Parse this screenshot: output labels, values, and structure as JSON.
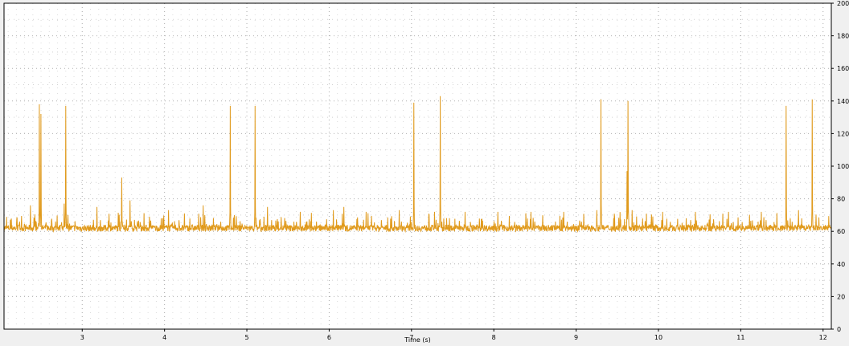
{
  "chart_data": {
    "type": "line",
    "title": "",
    "xlabel": "Time (s)",
    "ylabel": "",
    "x_range": [
      2.05,
      12.1
    ],
    "ylim": [
      0,
      200
    ],
    "x_ticks": [
      3,
      4,
      5,
      6,
      7,
      8,
      9,
      10,
      11,
      12
    ],
    "x_tick_labels": [
      "3",
      "4",
      "5",
      "6",
      "7",
      "8",
      "9",
      "10",
      "11",
      "12"
    ],
    "y_ticks": [
      0,
      20,
      40,
      60,
      80,
      100,
      120,
      140,
      160,
      180,
      200
    ],
    "y_tick_labels": [
      "0",
      "20",
      "40",
      "60",
      "80",
      "100",
      "120",
      "140",
      "160",
      "180",
      "200"
    ],
    "y_axis_side": "right",
    "grid": true,
    "baseline": 60,
    "colors": {
      "series": "#e09a1c",
      "plot_bg": "#ffffff",
      "frame": "#000000",
      "grid": "#b0b0b0"
    },
    "series": [
      {
        "name": "",
        "peaks": [
          {
            "x": 2.37,
            "y": 76
          },
          {
            "x": 2.48,
            "y": 138
          },
          {
            "x": 2.5,
            "y": 132
          },
          {
            "x": 2.78,
            "y": 77
          },
          {
            "x": 2.8,
            "y": 137
          },
          {
            "x": 3.18,
            "y": 75
          },
          {
            "x": 3.48,
            "y": 93
          },
          {
            "x": 3.58,
            "y": 79
          },
          {
            "x": 4.05,
            "y": 73
          },
          {
            "x": 4.47,
            "y": 76
          },
          {
            "x": 4.8,
            "y": 137
          },
          {
            "x": 4.85,
            "y": 70
          },
          {
            "x": 5.1,
            "y": 137
          },
          {
            "x": 5.25,
            "y": 75
          },
          {
            "x": 5.65,
            "y": 72
          },
          {
            "x": 6.05,
            "y": 73
          },
          {
            "x": 6.18,
            "y": 75
          },
          {
            "x": 6.45,
            "y": 72
          },
          {
            "x": 6.85,
            "y": 73
          },
          {
            "x": 7.03,
            "y": 139
          },
          {
            "x": 7.28,
            "y": 72
          },
          {
            "x": 7.35,
            "y": 143
          },
          {
            "x": 7.65,
            "y": 72
          },
          {
            "x": 8.05,
            "y": 72
          },
          {
            "x": 8.45,
            "y": 72
          },
          {
            "x": 8.85,
            "y": 72
          },
          {
            "x": 9.25,
            "y": 73
          },
          {
            "x": 9.3,
            "y": 141
          },
          {
            "x": 9.62,
            "y": 97
          },
          {
            "x": 9.63,
            "y": 140
          },
          {
            "x": 9.68,
            "y": 73
          },
          {
            "x": 10.05,
            "y": 72
          },
          {
            "x": 10.45,
            "y": 72
          },
          {
            "x": 10.85,
            "y": 72
          },
          {
            "x": 11.25,
            "y": 72
          },
          {
            "x": 11.55,
            "y": 137
          },
          {
            "x": 11.7,
            "y": 73
          },
          {
            "x": 11.87,
            "y": 141
          },
          {
            "x": 11.95,
            "y": 68
          }
        ]
      }
    ]
  }
}
